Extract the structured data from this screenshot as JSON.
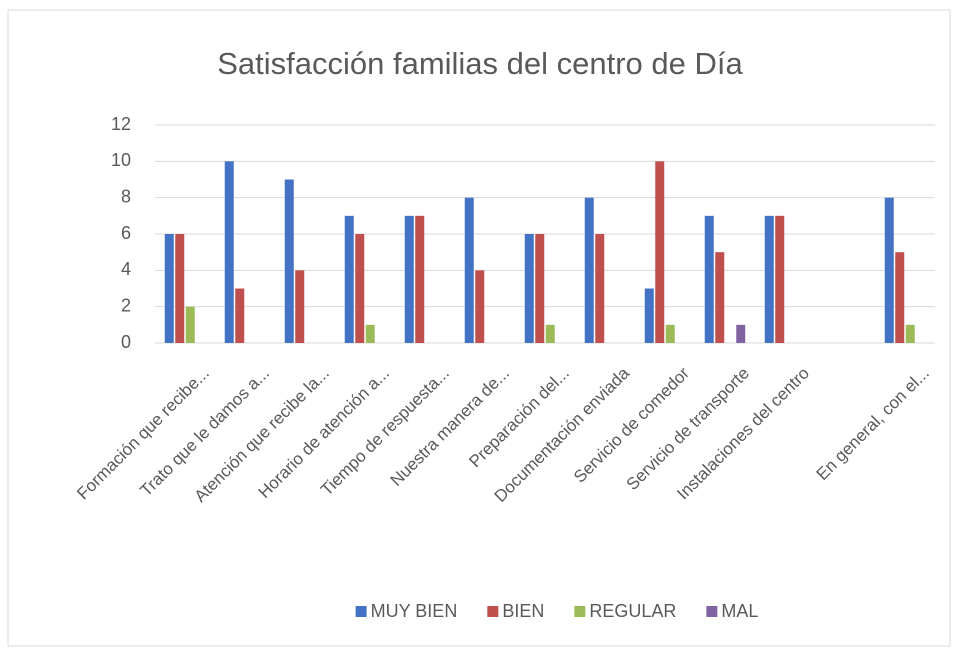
{
  "chart_data": {
    "type": "bar",
    "title": "Satisfacción  familias del centro de Día",
    "categories": [
      "Formación que recibe...",
      "Trato que le damos a...",
      "Atención que recibe la...",
      "Horario de atención a...",
      "Tiempo de respuesta...",
      "Nuestra manera de...",
      "Preparación  del...",
      "Documentación enviada",
      "Servicio de comedor",
      "Servicio de transporte",
      "Instalaciones del centro",
      null,
      "En general, con el..."
    ],
    "series": [
      {
        "name": "MUY BIEN",
        "color": "#4472c4",
        "values": [
          6,
          10,
          9,
          7,
          7,
          8,
          6,
          8,
          3,
          7,
          7,
          null,
          8
        ]
      },
      {
        "name": "BIEN",
        "color": "#c0504d",
        "values": [
          6,
          3,
          4,
          6,
          7,
          4,
          6,
          6,
          10,
          5,
          7,
          null,
          5
        ]
      },
      {
        "name": "REGULAR",
        "color": "#9bbb59",
        "values": [
          2,
          0,
          0,
          1,
          0,
          0,
          1,
          0,
          1,
          0,
          0,
          null,
          1
        ]
      },
      {
        "name": "MAL",
        "color": "#8064a2",
        "values": [
          0,
          0,
          0,
          0,
          0,
          0,
          0,
          0,
          0,
          1,
          0,
          null,
          0
        ]
      }
    ],
    "ylim": [
      0,
      12
    ],
    "yticks": [
      0,
      2,
      4,
      6,
      8,
      10,
      12
    ],
    "grid": true,
    "legend": "bottom"
  }
}
